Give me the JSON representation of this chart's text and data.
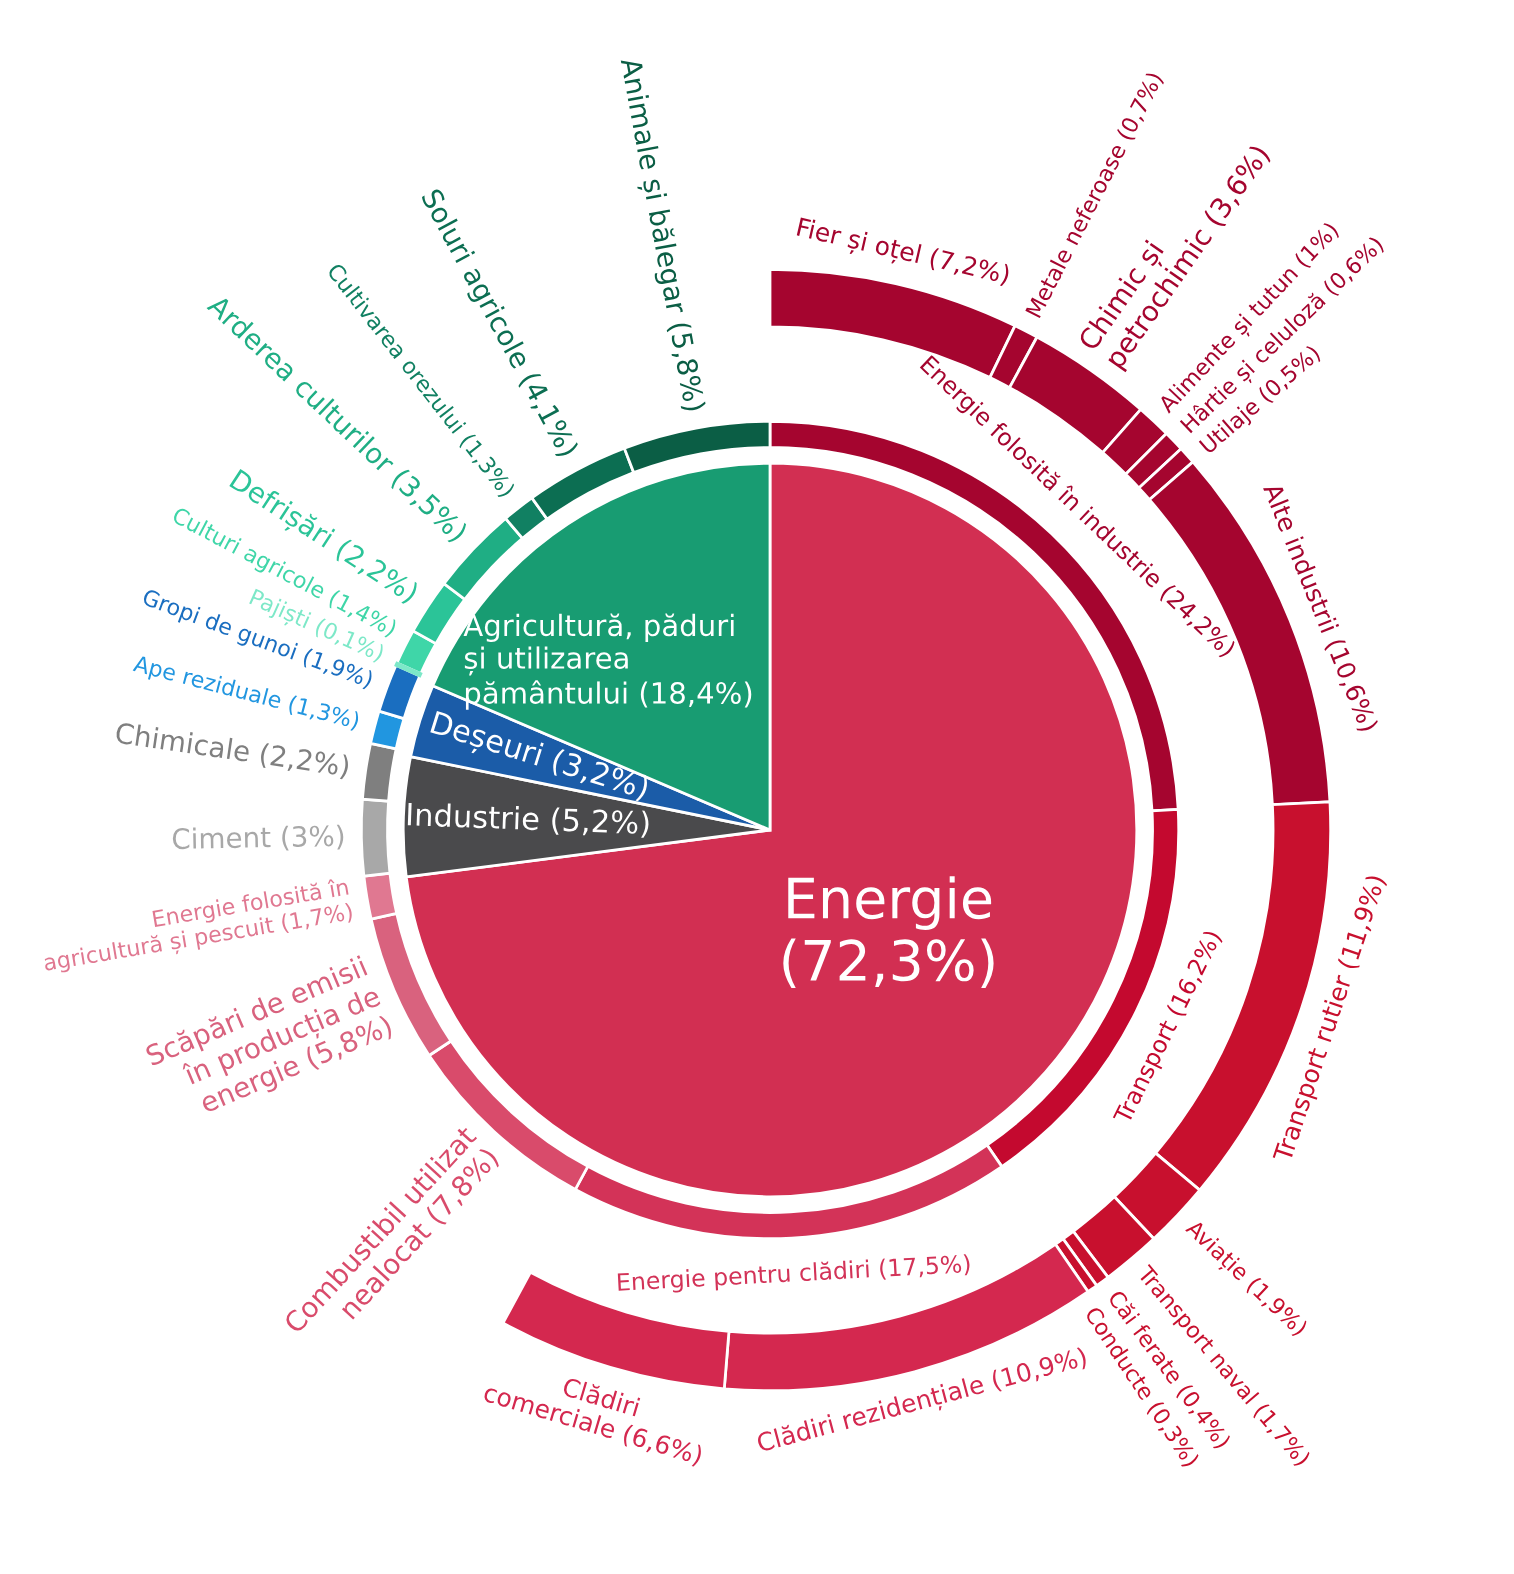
{
  "chart_data": {
    "type": "donut",
    "categories": [
      "Energie",
      "Industrie",
      "Deșeuri",
      "Agricultură, păduri\nși utilizarea\npământului",
      "Energie folosită în industrie",
      "Transport",
      "Energie pentru clădiri",
      "Combustibil utilizat\nnealocat",
      "Scăpări de emisii\nîn producția de\nenergie",
      "Energie folosită în\nagricultură și pescuit",
      "Ciment",
      "Chimicale",
      "Ape reziduale",
      "Gropi de gunoi",
      "Pajiști",
      "Culturi agricole",
      "Defrișări",
      "Arderea culturilor",
      "Cultivarea orezului",
      "Soluri agricole",
      "Animale și bălegar",
      "Fier și oțel",
      "Metale neferoase",
      "Chimic și\npetrochimic",
      "Alimente și tutun",
      "Hârtie și celuloză",
      "Utilaje",
      "Alte industrii",
      "Transport rutier",
      "Aviație",
      "Transport naval",
      "Căi ferate",
      "Conducte",
      "Clădiri rezidențiale",
      "Clădiri\ncomerciale"
    ],
    "series": [
      {
        "type": "pie",
        "values": [
          72.3,
          5.2,
          3.2,
          18.4,
          null,
          null,
          null,
          null,
          null,
          null,
          null,
          null,
          null,
          null,
          null,
          null,
          null,
          null,
          null,
          null,
          null,
          null,
          null,
          null,
          null,
          null,
          null,
          null,
          null,
          null,
          null,
          null,
          null,
          null,
          null
        ],
        "colors": [
          "#d22f52",
          "#4a4a4c",
          "#1b5ca8",
          "#189c72",
          null,
          null,
          null,
          null,
          null,
          null,
          null,
          null,
          null,
          null,
          null,
          null,
          null,
          null,
          null,
          null,
          null,
          null,
          null,
          null,
          null,
          null,
          null,
          null,
          null,
          null,
          null,
          null,
          null,
          null,
          null
        ],
        "value_labels": [
          "(72,3%)",
          "(5,2%)",
          "(3,2%)",
          "(18,4%)",
          null,
          null,
          null,
          null,
          null,
          null,
          null,
          null,
          null,
          null,
          null,
          null,
          null,
          null,
          null,
          null,
          null,
          null,
          null,
          null,
          null,
          null,
          null,
          null,
          null,
          null,
          null,
          null,
          null,
          null,
          null
        ]
      },
      {
        "type": "donut",
        "values": [
          null,
          null,
          null,
          null,
          24.2,
          16.2,
          17.5,
          7.8,
          5.8,
          1.7,
          3,
          2.2,
          1.3,
          1.9,
          0.1,
          1.4,
          2.2,
          3.5,
          1.3,
          4.1,
          5.8,
          null,
          null,
          null,
          null,
          null,
          null,
          null,
          null,
          null,
          null,
          null,
          null,
          null,
          null
        ],
        "colors": [
          null,
          null,
          null,
          null,
          "#a5052f",
          "#c4092f",
          "#d33358",
          "#d94b6b",
          "#d9627e",
          "#e07891",
          "#a8a8a8",
          "#7f7f7f",
          "#2196e0",
          "#1a6ec0",
          "#7de8c8",
          "#3fd6a8",
          "#2bc498",
          "#1fae84",
          "#118062",
          "#0c6e52",
          "#0b5e45",
          null,
          null,
          null,
          null,
          null,
          null,
          null,
          null,
          null,
          null,
          null,
          null,
          null,
          null
        ],
        "value_labels": [
          null,
          null,
          null,
          null,
          "(24,2%)",
          "(16,2%)",
          "(17,5%)",
          "(7,8%)",
          "(5,8%)",
          "(1,7%)",
          "(3%)",
          "(2,2%)",
          "(1,3%)",
          "(1,9%)",
          "(0,1%)",
          "(1,4%)",
          "(2,2%)",
          "(3,5%)",
          "(1,3%)",
          "(4,1%)",
          "(5,8%)",
          null,
          null,
          null,
          null,
          null,
          null,
          null,
          null,
          null,
          null,
          null,
          null,
          null,
          null
        ]
      },
      {
        "type": "donut",
        "values": [
          null,
          null,
          null,
          null,
          null,
          null,
          null,
          null,
          null,
          null,
          null,
          null,
          null,
          null,
          null,
          null,
          null,
          null,
          null,
          null,
          null,
          7.2,
          0.7,
          3.6,
          1,
          0.6,
          0.5,
          10.6,
          11.9,
          1.9,
          1.7,
          0.4,
          0.3,
          10.9,
          6.6
        ],
        "colors": [
          null,
          null,
          null,
          null,
          null,
          null,
          null,
          null,
          null,
          null,
          null,
          null,
          null,
          null,
          null,
          null,
          null,
          null,
          null,
          null,
          null,
          "#a5052f",
          "#a5052f",
          "#a5052f",
          "#a5052f",
          "#a5052f",
          "#a5052f",
          "#a5052f",
          "#c8102e",
          "#c8102e",
          "#c8102e",
          "#c8102e",
          "#c8102e",
          "#d4284f",
          "#d4284f"
        ],
        "value_labels": [
          null,
          null,
          null,
          null,
          null,
          null,
          null,
          null,
          null,
          null,
          null,
          null,
          null,
          null,
          null,
          null,
          null,
          null,
          null,
          null,
          null,
          "(7,2%)",
          "(0,7%)",
          "(3,6%)",
          "(1%)",
          "(0,6%)",
          "(0,5%)",
          "(10,6%)",
          "(11,9%)",
          "(1,9%)",
          "(1,7%)",
          "(0,4%)",
          "(0,3%)",
          "(10,9%)",
          "(6,6%)"
        ]
      }
    ]
  }
}
